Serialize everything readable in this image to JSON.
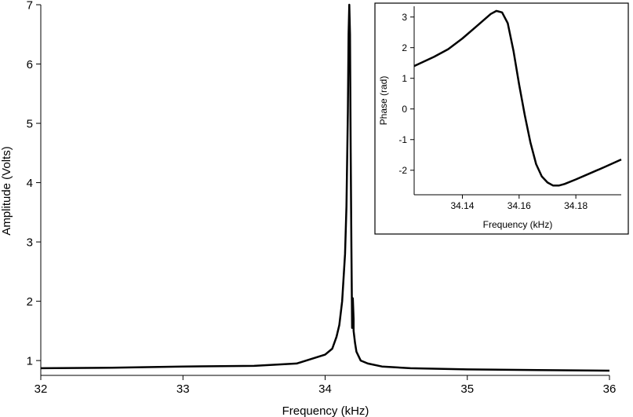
{
  "chart_data": [
    {
      "type": "line",
      "title": "",
      "xlabel": "Frequency (kHz)",
      "ylabel": "Amplitude (Volts)",
      "xlim": [
        32,
        36
      ],
      "ylim": [
        0.75,
        7.0
      ],
      "xticks": [
        32,
        33,
        34,
        35,
        36
      ],
      "yticks": [
        1,
        2,
        3,
        4,
        5,
        6,
        7
      ],
      "grid": false,
      "series": [
        {
          "x": [
            32.0,
            32.5,
            33.0,
            33.5,
            33.8,
            34.0,
            34.05,
            34.08,
            34.1,
            34.12,
            34.14,
            34.15,
            34.16,
            34.165,
            34.17,
            34.175,
            34.18,
            34.185,
            34.19,
            34.195,
            34.2,
            34.2,
            34.21,
            34.22,
            34.25,
            34.3,
            34.4,
            34.6,
            35.0,
            35.5,
            36.0
          ],
          "y": [
            0.87,
            0.88,
            0.9,
            0.91,
            0.95,
            1.1,
            1.2,
            1.4,
            1.6,
            2.0,
            2.8,
            3.6,
            5.2,
            6.5,
            7.0,
            6.5,
            4.5,
            2.9,
            1.55,
            2.05,
            1.7,
            1.5,
            1.3,
            1.15,
            1.0,
            0.95,
            0.9,
            0.87,
            0.85,
            0.84,
            0.83
          ]
        }
      ]
    },
    {
      "type": "line",
      "title": "",
      "xlabel": "Frequency (kHz)",
      "ylabel": "Phase (rad)",
      "xlim": [
        34.123,
        34.196
      ],
      "ylim": [
        -2.8,
        3.35
      ],
      "xticks": [
        34.14,
        34.16,
        34.18
      ],
      "yticks": [
        -2,
        -1,
        0,
        1,
        2,
        3
      ],
      "grid": false,
      "series": [
        {
          "x": [
            34.123,
            34.13,
            34.135,
            34.14,
            34.145,
            34.15,
            34.152,
            34.154,
            34.156,
            34.158,
            34.16,
            34.162,
            34.164,
            34.166,
            34.168,
            34.17,
            34.172,
            34.174,
            34.176,
            34.18,
            34.185,
            34.19,
            34.196
          ],
          "y": [
            1.4,
            1.7,
            1.95,
            2.3,
            2.7,
            3.1,
            3.2,
            3.15,
            2.8,
            1.9,
            0.8,
            -0.2,
            -1.1,
            -1.8,
            -2.2,
            -2.4,
            -2.5,
            -2.5,
            -2.45,
            -2.3,
            -2.1,
            -1.9,
            -1.65
          ]
        }
      ]
    }
  ]
}
